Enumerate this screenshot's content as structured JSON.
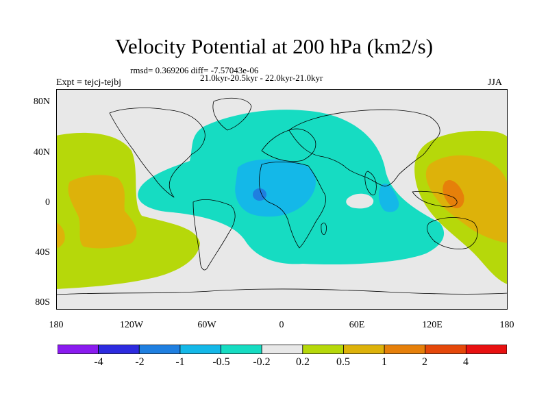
{
  "title": "Velocity Potential at 200 hPa (km2/s)",
  "stats": "rmsd= 0.369206 diff= -7.57043e-06",
  "period": "21.0kyr-20.5kyr - 22.0kyr-21.0kyr",
  "experiment": "Expt = tejcj-tejbj",
  "season": "JJA",
  "axes": {
    "lat_labels": [
      "80N",
      "40N",
      "0",
      "40S",
      "80S"
    ],
    "lon_labels": [
      "180",
      "120W",
      "60W",
      "0",
      "60E",
      "120E",
      "180"
    ]
  },
  "colorbar": {
    "labels": [
      "-4",
      "-2",
      "-1",
      "-0.5",
      "-0.2",
      "0.2",
      "0.5",
      "1",
      "2",
      "4"
    ],
    "colors": [
      "#8a1bef",
      "#2d2bdf",
      "#1f7fe0",
      "#14b8e8",
      "#16dcc2",
      "#e8e8e8",
      "#b6d80a",
      "#ddb20a",
      "#e6800a",
      "#e5480a",
      "#e81111"
    ]
  },
  "map_colors": {
    "ocean_background": "#e8e8e8",
    "coastline": "#000000"
  }
}
